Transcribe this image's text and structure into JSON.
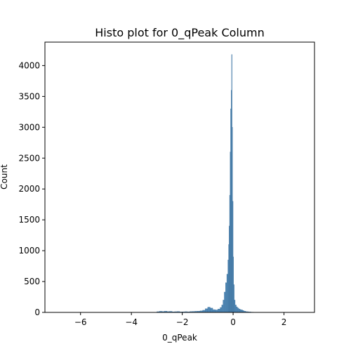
{
  "chart_data": {
    "type": "bar",
    "title": "Histo plot for 0_qPeak Column",
    "xlabel": "0_qPeak",
    "ylabel": "Count",
    "xlim": [
      -7.4,
      3.2
    ],
    "ylim": [
      0,
      4380
    ],
    "xticks": [
      -6,
      -4,
      -2,
      0,
      2
    ],
    "yticks": [
      0,
      500,
      1000,
      1500,
      2000,
      2500,
      3000,
      3500,
      4000
    ],
    "bar_color": "#4f87b5",
    "bar_edge_color": "#3a6f9a",
    "grid": false,
    "legend": "none",
    "bins": [
      {
        "x": -2.95,
        "count": 12
      },
      {
        "x": -2.85,
        "count": 18
      },
      {
        "x": -2.75,
        "count": 15
      },
      {
        "x": -2.65,
        "count": 20
      },
      {
        "x": -2.55,
        "count": 14
      },
      {
        "x": -2.45,
        "count": 17
      },
      {
        "x": -2.35,
        "count": 10
      },
      {
        "x": -2.25,
        "count": 12
      },
      {
        "x": -2.15,
        "count": 15
      },
      {
        "x": -2.05,
        "count": 8
      },
      {
        "x": -1.95,
        "count": 10
      },
      {
        "x": -1.85,
        "count": 12
      },
      {
        "x": -1.75,
        "count": 10
      },
      {
        "x": -1.65,
        "count": 14
      },
      {
        "x": -1.55,
        "count": 16
      },
      {
        "x": -1.45,
        "count": 18
      },
      {
        "x": -1.35,
        "count": 20
      },
      {
        "x": -1.25,
        "count": 25
      },
      {
        "x": -1.15,
        "count": 35
      },
      {
        "x": -1.05,
        "count": 60
      },
      {
        "x": -0.95,
        "count": 85
      },
      {
        "x": -0.85,
        "count": 70
      },
      {
        "x": -0.75,
        "count": 45
      },
      {
        "x": -0.65,
        "count": 40
      },
      {
        "x": -0.55,
        "count": 55
      },
      {
        "x": -0.475,
        "count": 80
      },
      {
        "x": -0.425,
        "count": 120
      },
      {
        "x": -0.375,
        "count": 200
      },
      {
        "x": -0.325,
        "count": 330
      },
      {
        "x": -0.275,
        "count": 480
      },
      {
        "x": -0.225,
        "count": 620
      },
      {
        "x": -0.19,
        "count": 850
      },
      {
        "x": -0.17,
        "count": 1100
      },
      {
        "x": -0.15,
        "count": 1400
      },
      {
        "x": -0.13,
        "count": 1900
      },
      {
        "x": -0.11,
        "count": 2600
      },
      {
        "x": -0.09,
        "count": 3300
      },
      {
        "x": -0.07,
        "count": 3600
      },
      {
        "x": -0.05,
        "count": 4180
      },
      {
        "x": -0.03,
        "count": 3000
      },
      {
        "x": -0.01,
        "count": 1800
      },
      {
        "x": 0.01,
        "count": 900
      },
      {
        "x": 0.03,
        "count": 450
      },
      {
        "x": 0.06,
        "count": 200
      },
      {
        "x": 0.1,
        "count": 120
      },
      {
        "x": 0.15,
        "count": 90
      },
      {
        "x": 0.2,
        "count": 70
      },
      {
        "x": 0.25,
        "count": 55
      },
      {
        "x": 0.3,
        "count": 45
      },
      {
        "x": 0.35,
        "count": 40
      },
      {
        "x": 0.4,
        "count": 30
      },
      {
        "x": 0.45,
        "count": 20
      },
      {
        "x": 0.55,
        "count": 12
      },
      {
        "x": 0.65,
        "count": 8
      },
      {
        "x": 0.75,
        "count": 5
      }
    ]
  }
}
